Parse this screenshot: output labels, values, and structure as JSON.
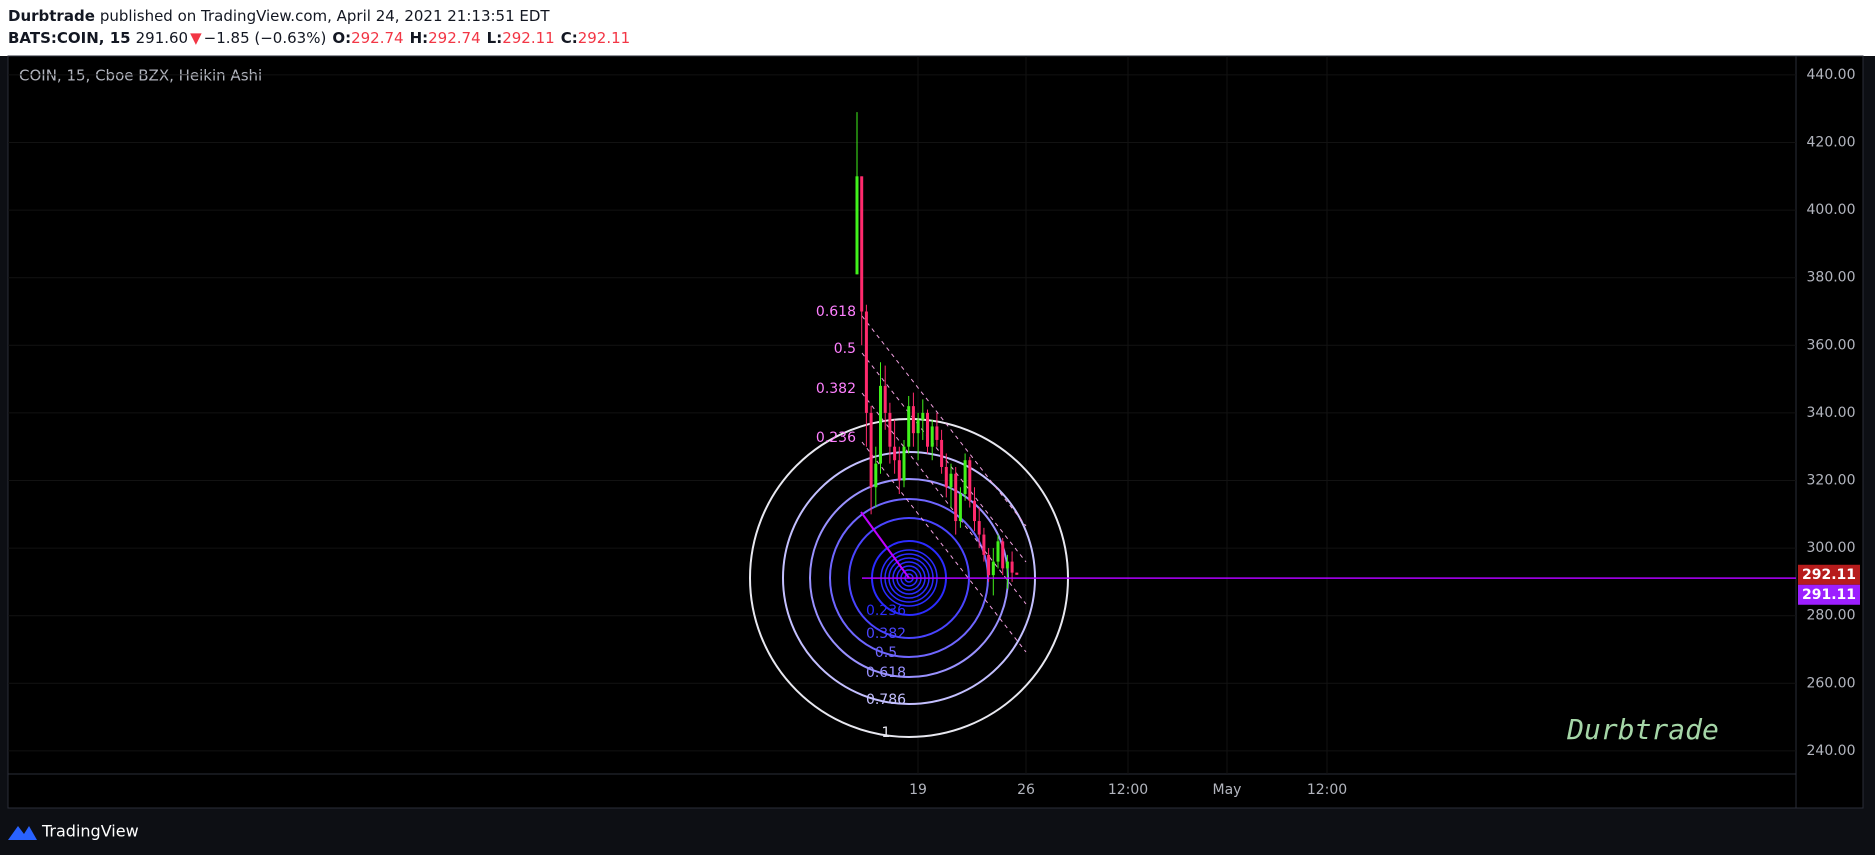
{
  "header": {
    "author": "Durbtrade",
    "published": "published on TradingView.com, April 24, 2021 21:13:51 EDT",
    "symbol": "BATS:COIN, 15",
    "last": "291.60",
    "arrow": "▼",
    "change": "−1.85 (−0.63%)",
    "ohlc": [
      {
        "key": "O:",
        "val": "292.74"
      },
      {
        "key": "H:",
        "val": "292.74"
      },
      {
        "key": "L:",
        "val": "292.11"
      },
      {
        "key": "C:",
        "val": "292.11"
      }
    ]
  },
  "chart_data": {
    "type": "candlestick",
    "legend": "COIN, 15, Cboe BZX, Heikin Ashi",
    "ylim": [
      223.1,
      445.6
    ],
    "yticks": [
      {
        "value": 240,
        "label": "240.00"
      },
      {
        "value": 260,
        "label": "260.00"
      },
      {
        "value": 280,
        "label": "280.00"
      },
      {
        "value": 300,
        "label": "300.00"
      },
      {
        "value": 320,
        "label": "320.00"
      },
      {
        "value": 340,
        "label": "340.00"
      },
      {
        "value": 360,
        "label": "360.00"
      },
      {
        "value": 380,
        "label": "380.00"
      },
      {
        "value": 400,
        "label": "400.00"
      },
      {
        "value": 420,
        "label": "420.00"
      },
      {
        "value": 440,
        "label": "440.00"
      }
    ],
    "xtick_labels": [
      "19",
      "26",
      "12:00",
      "May",
      "12:00"
    ],
    "up_color": "#41f21b",
    "down_color": "#ff2a6d",
    "candles": [
      [
        381,
        429,
        381,
        410
      ],
      [
        410,
        410,
        360,
        370
      ],
      [
        370,
        372,
        330,
        340
      ],
      [
        340,
        342,
        310,
        318
      ],
      [
        318,
        330,
        312,
        325
      ],
      [
        325,
        355,
        322,
        348
      ],
      [
        348,
        354,
        335,
        340
      ],
      [
        340,
        343,
        325,
        330
      ],
      [
        330,
        338,
        322,
        326
      ],
      [
        326,
        330,
        316,
        320
      ],
      [
        320,
        332,
        318,
        330
      ],
      [
        330,
        345,
        328,
        342
      ],
      [
        342,
        346,
        330,
        334
      ],
      [
        334,
        340,
        326,
        338
      ],
      [
        338,
        344,
        332,
        340
      ],
      [
        340,
        341,
        328,
        330
      ],
      [
        330,
        338,
        326,
        336
      ],
      [
        336,
        340,
        330,
        332
      ],
      [
        332,
        335,
        322,
        324
      ],
      [
        324,
        328,
        315,
        318
      ],
      [
        318,
        325,
        312,
        322
      ],
      [
        322,
        324,
        304,
        308
      ],
      [
        308,
        318,
        306,
        316
      ],
      [
        316,
        328,
        314,
        326
      ],
      [
        326,
        327,
        312,
        314
      ],
      [
        314,
        318,
        305,
        308
      ],
      [
        308,
        312,
        300,
        304
      ],
      [
        304,
        306,
        296,
        298
      ],
      [
        298,
        300,
        290,
        292
      ],
      [
        292,
        300,
        286,
        296
      ],
      [
        296,
        304,
        294,
        302
      ],
      [
        302,
        303,
        292,
        294
      ],
      [
        294,
        298,
        288,
        296
      ],
      [
        296,
        299,
        290,
        292.74
      ],
      [
        292.74,
        292.74,
        292.11,
        292.11
      ]
    ],
    "last_price": 292.11,
    "line_price": 291.11,
    "fan_labels": [
      "0.618",
      "0.5",
      "0.382",
      "0.236"
    ],
    "circle_labels": [
      "0.236",
      "0.382",
      "0.5",
      "0.618",
      "0.786",
      "1"
    ],
    "watermark": "Durbtrade"
  },
  "footer": {
    "brand": "TradingView"
  }
}
